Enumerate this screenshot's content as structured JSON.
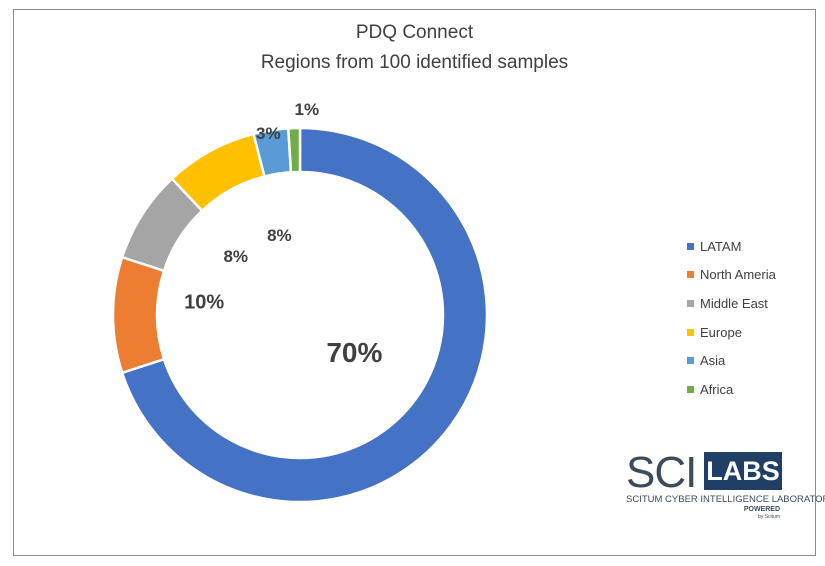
{
  "chart_data": {
    "type": "pie",
    "style": "donut",
    "title": "PDQ Connect",
    "subtitle": "Regions from 100 identified samples",
    "categories": [
      "LATAM",
      "North Ameria",
      "Middle East",
      "Europe",
      "Asia",
      "Africa"
    ],
    "values": [
      70,
      10,
      8,
      8,
      3,
      1
    ],
    "data_labels": [
      "70%",
      "10%",
      "8%",
      "8%",
      "3%",
      "1%"
    ],
    "colors": [
      "#4472c4",
      "#ed7d31",
      "#a5a5a5",
      "#ffc000",
      "#5b9bd5",
      "#70ad47"
    ],
    "legend_position": "right"
  },
  "logo": {
    "sci": "SCI",
    "labs": "LABS",
    "subtitle": "SCITUM CYBER INTELLIGENCE LABORATORIES",
    "powered": "POWERED",
    "by": "by Scitum"
  }
}
